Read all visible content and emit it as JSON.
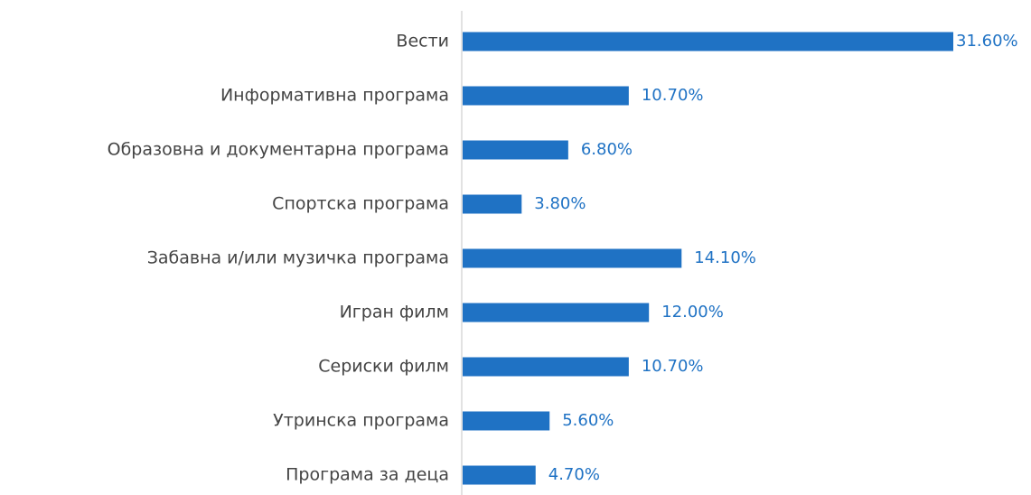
{
  "chart_data": {
    "type": "bar",
    "orientation": "horizontal",
    "categories": [
      "Вести",
      "Информативна програма",
      "Образовна и документарна програма",
      "Спортска програма",
      "Забавна и/или музичка програма",
      "Игран филм",
      "Сериски филм",
      "Утринска програма",
      "Програма за деца"
    ],
    "values": [
      31.6,
      10.7,
      6.8,
      3.8,
      14.1,
      12.0,
      10.7,
      5.6,
      4.7
    ],
    "value_labels": [
      "31.60%",
      "10.70%",
      "6.80%",
      "3.80%",
      "14.10%",
      "12.00%",
      "10.70%",
      "5.60%",
      "4.70%"
    ],
    "color": "#1f72c4",
    "label_color": "#1f72c4"
  }
}
